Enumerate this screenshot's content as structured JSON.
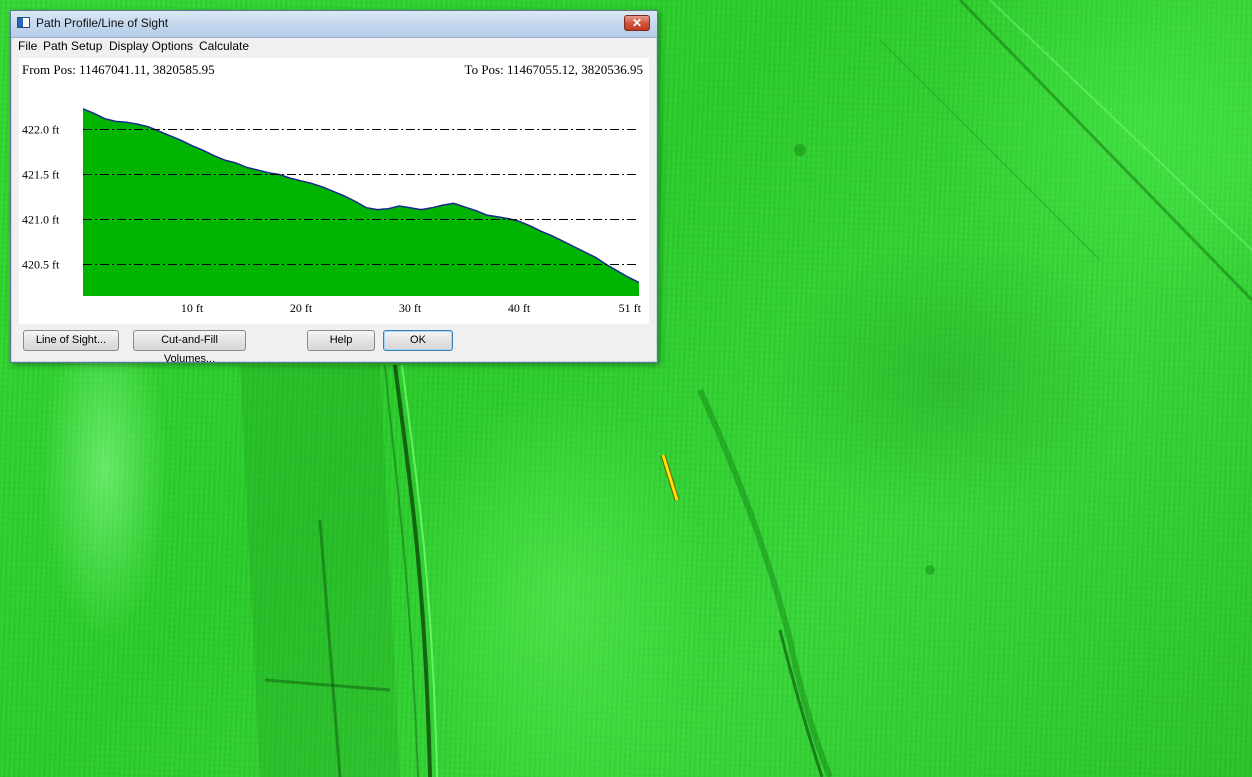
{
  "window": {
    "title": "Path Profile/Line of Sight",
    "close_glyph": "✕",
    "icon": "window-app-icon"
  },
  "menu": [
    {
      "label": "File"
    },
    {
      "label": "Path Setup"
    },
    {
      "label": "Display Options"
    },
    {
      "label": "Calculate"
    }
  ],
  "profile": {
    "from_pos": "From Pos: 11467041.11, 3820585.95",
    "to_pos": "To Pos: 11467055.12, 3820536.95"
  },
  "buttons": {
    "line_of_sight": "Line of Sight...",
    "cut_fill": "Cut-and-Fill Volumes...",
    "help": "Help",
    "ok": "OK"
  },
  "colors": {
    "terrain_fill": "#00b400",
    "terrain_outline": "#1a2a8a",
    "map_green": "#2fd42f",
    "path_line": "#ffe000"
  },
  "chart_data": {
    "type": "area",
    "title": "",
    "xlabel": "",
    "ylabel": "",
    "xlim": [
      0,
      51
    ],
    "ylim": [
      420.15,
      422.35
    ],
    "x_ticks": [
      {
        "value": 10,
        "label": "10 ft"
      },
      {
        "value": 20,
        "label": "20 ft"
      },
      {
        "value": 30,
        "label": "30 ft"
      },
      {
        "value": 40,
        "label": "40 ft"
      },
      {
        "value": 51,
        "label": "51 ft"
      }
    ],
    "y_ticks": [
      {
        "value": 422.0,
        "label": "422.0 ft"
      },
      {
        "value": 421.5,
        "label": "421.5 ft"
      },
      {
        "value": 421.0,
        "label": "421.0 ft"
      },
      {
        "value": 420.5,
        "label": "420.5 ft"
      }
    ],
    "grid": "horizontal dash-dot",
    "series": [
      {
        "x": [
          0,
          1,
          2,
          3,
          4,
          5,
          6,
          7,
          8,
          9,
          10,
          11,
          12,
          13,
          14,
          15,
          16,
          17,
          18,
          19,
          20,
          21,
          22,
          23,
          24,
          25,
          26,
          27,
          28,
          29,
          30,
          31,
          32,
          33,
          34,
          35,
          36,
          37,
          38,
          39,
          40,
          41,
          42,
          43,
          44,
          45,
          46,
          47,
          48,
          49,
          50,
          51
        ],
        "values": [
          422.23,
          422.18,
          422.12,
          422.09,
          422.08,
          422.06,
          422.03,
          421.98,
          421.93,
          421.88,
          421.82,
          421.77,
          421.71,
          421.66,
          421.63,
          421.58,
          421.55,
          421.52,
          421.5,
          421.46,
          421.43,
          421.4,
          421.36,
          421.31,
          421.26,
          421.2,
          421.13,
          421.11,
          421.12,
          421.15,
          421.13,
          421.11,
          421.13,
          421.16,
          421.18,
          421.14,
          421.1,
          421.05,
          421.03,
          421.01,
          420.98,
          420.93,
          420.87,
          420.82,
          420.76,
          420.7,
          420.64,
          420.58,
          420.5,
          420.43,
          420.36,
          420.3
        ]
      }
    ]
  }
}
